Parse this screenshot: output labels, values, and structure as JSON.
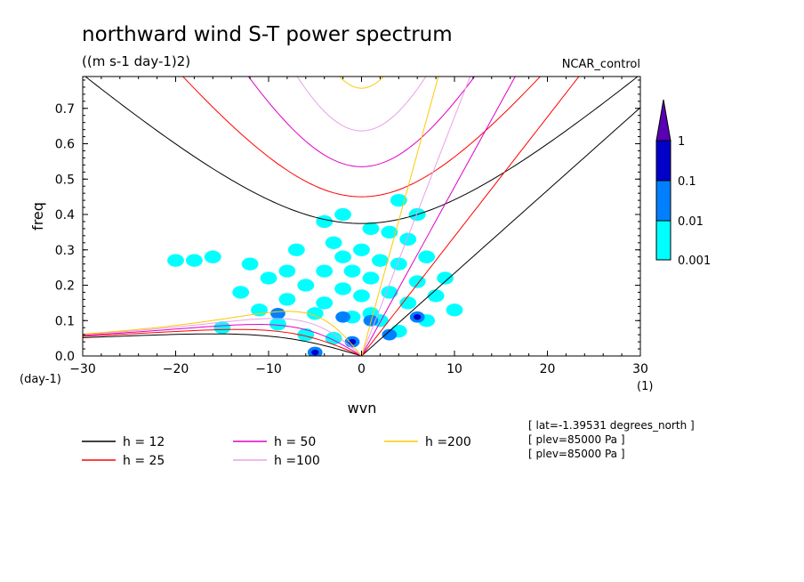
{
  "chart_data": {
    "type": "heatmap",
    "title": "northward wind S-T power spectrum",
    "subtitle": "((m s-1 day-1)2)",
    "run_label": "NCAR_control",
    "xlabel": "wvn",
    "ylabel": "freq",
    "x_unit": "(1)",
    "y_unit": "(day-1)",
    "xlim": [
      -30,
      30
    ],
    "ylim": [
      0,
      0.79
    ],
    "x_ticks": [
      -30,
      -20,
      -10,
      0,
      10,
      20,
      30
    ],
    "x_tick_labels": [
      "−30",
      "−20",
      "−10",
      "0",
      "10",
      "20",
      "30"
    ],
    "y_ticks": [
      0,
      0.1,
      0.2,
      0.3,
      0.4,
      0.5,
      0.6,
      0.7
    ],
    "y_tick_labels": [
      "0.0",
      "0.1",
      "0.2",
      "0.3",
      "0.4",
      "0.5",
      "0.6",
      "0.7"
    ],
    "colorbar": {
      "levels": [
        0.001,
        0.01,
        0.1,
        1
      ],
      "labels": [
        "0.001",
        "0.01",
        "0.1",
        "1"
      ],
      "colors": [
        "#00ffff",
        "#0080ff",
        "#0000c8",
        "#5a00b4"
      ]
    },
    "contours_level1": [
      [
        -20,
        0.27
      ],
      [
        -18,
        0.27
      ],
      [
        -16,
        0.28
      ],
      [
        -13,
        0.18
      ],
      [
        -12,
        0.26
      ],
      [
        -11,
        0.13
      ],
      [
        -10,
        0.22
      ],
      [
        -9,
        0.09
      ],
      [
        -8,
        0.24
      ],
      [
        -8,
        0.16
      ],
      [
        -7,
        0.3
      ],
      [
        -6,
        0.06
      ],
      [
        -6,
        0.2
      ],
      [
        -5,
        0.12
      ],
      [
        -4,
        0.24
      ],
      [
        -4,
        0.15
      ],
      [
        -3,
        0.32
      ],
      [
        -3,
        0.05
      ],
      [
        -2,
        0.19
      ],
      [
        -2,
        0.28
      ],
      [
        -1,
        0.11
      ],
      [
        -1,
        0.24
      ],
      [
        0,
        0.17
      ],
      [
        0,
        0.3
      ],
      [
        1,
        0.12
      ],
      [
        1,
        0.22
      ],
      [
        2,
        0.27
      ],
      [
        2,
        0.1
      ],
      [
        3,
        0.35
      ],
      [
        3,
        0.18
      ],
      [
        4,
        0.44
      ],
      [
        4,
        0.07
      ],
      [
        4,
        0.26
      ],
      [
        5,
        0.15
      ],
      [
        5,
        0.33
      ],
      [
        6,
        0.21
      ],
      [
        6,
        0.4
      ],
      [
        7,
        0.1
      ],
      [
        7,
        0.28
      ],
      [
        8,
        0.17
      ],
      [
        9,
        0.22
      ],
      [
        10,
        0.13
      ],
      [
        -15,
        0.08
      ],
      [
        -4,
        0.38
      ],
      [
        -2,
        0.4
      ],
      [
        1,
        0.36
      ]
    ],
    "contours_level2": [
      [
        -5,
        0.01
      ],
      [
        -1,
        0.04
      ],
      [
        1,
        0.1
      ],
      [
        -2,
        0.11
      ],
      [
        6,
        0.11
      ],
      [
        3,
        0.06
      ],
      [
        -9,
        0.12
      ]
    ],
    "contours_level3": [
      [
        -5,
        0.01
      ],
      [
        -1,
        0.04
      ],
      [
        6,
        0.11
      ]
    ],
    "dispersion_curves": [
      {
        "h": 12,
        "color": "#000000"
      },
      {
        "h": 25,
        "color": "#ff0000"
      },
      {
        "h": 50,
        "color": "#e000c8"
      },
      {
        "h": 100,
        "color": "#e8a0e8"
      },
      {
        "h": 200,
        "color": "#ffc800"
      }
    ],
    "legend": [
      {
        "label": "h = 12",
        "color": "#000000"
      },
      {
        "label": "h = 25",
        "color": "#ff0000"
      },
      {
        "label": "h = 50",
        "color": "#e000c8"
      },
      {
        "label": "h =100",
        "color": "#e8a0e8"
      },
      {
        "label": "h =200",
        "color": "#ffc800"
      }
    ],
    "info_lines": [
      "[ lat=-1.39531 degrees_north ]",
      "[ plev=85000 Pa ]",
      "[ plev=85000 Pa ]"
    ]
  }
}
